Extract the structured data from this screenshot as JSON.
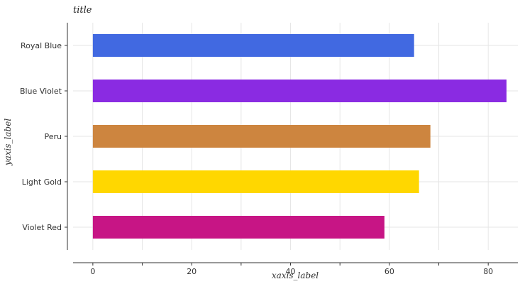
{
  "chart_data": {
    "type": "bar",
    "orientation": "horizontal",
    "title": "title",
    "xlabel": "xaxis_label",
    "ylabel": "yaxis_label",
    "categories": [
      "Violet Red",
      "Light Gold",
      "Peru",
      "Blue Violet",
      "Royal Blue"
    ],
    "values": [
      59,
      66,
      68.3,
      83.7,
      65
    ],
    "colors": [
      "#c71585",
      "#ffd700",
      "#cd853f",
      "#8a2be2",
      "#4169e1"
    ],
    "xlim": [
      -4,
      86
    ],
    "xticks": [
      0,
      20,
      40,
      60,
      80
    ],
    "xtick_labels": [
      "0",
      "20",
      "40",
      "60",
      "80"
    ],
    "grid": true
  }
}
